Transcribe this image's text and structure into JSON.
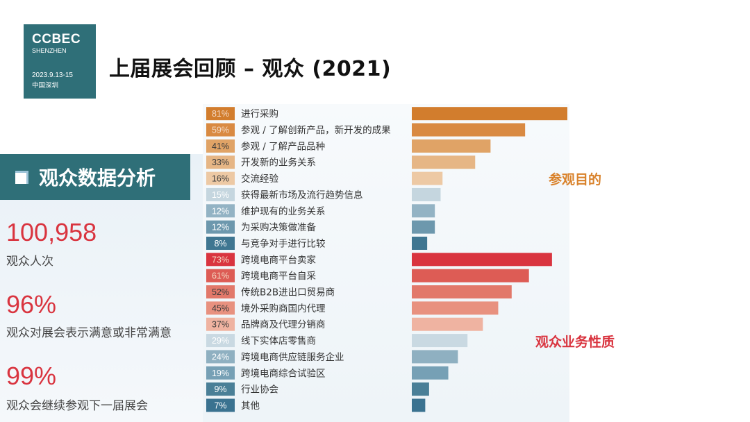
{
  "logo": {
    "brand": "CCBEC",
    "city": "SHENZHEN",
    "date": "2023.9.13-15",
    "place": "中国深圳"
  },
  "title": "上届展会回顾 – 观众 (2021)",
  "panel": {
    "heading": "观众数据分析",
    "stats": [
      {
        "value": "100,958",
        "label": "观众人次"
      },
      {
        "value": "96%",
        "label": "观众对展会表示满意或非常满意"
      },
      {
        "value": "99%",
        "label": "观众会继续参观下一届展会"
      }
    ]
  },
  "colors": {
    "brand_teal": "#2f6f78",
    "accent_red": "#d9343f",
    "accent_orange": "#d9822b"
  },
  "chart_data": [
    {
      "type": "bar",
      "orientation": "horizontal",
      "annotation": "参观目的",
      "annotation_color": "#d9822b",
      "xlim": [
        0,
        81
      ],
      "categories": [
        "进行采购",
        "参观 / 了解创新产品，新开发的成果",
        "参观 / 了解产品品种",
        "开发新的业务关系",
        "交流经验",
        "获得最新市场及流行趋势信息",
        "维护现有的业务关系",
        "为采购决策做准备",
        "与竞争对手进行比较"
      ],
      "values": [
        81,
        59,
        41,
        33,
        16,
        15,
        12,
        12,
        8
      ],
      "value_labels": [
        "81%",
        "59%",
        "41%",
        "33%",
        "16%",
        "15%",
        "12%",
        "12%",
        "8%"
      ],
      "colors": [
        "#d27d2d",
        "#d98a42",
        "#e0a366",
        "#e6b685",
        "#edc9a4",
        "#c5d6df",
        "#93b3c4",
        "#6d98ad",
        "#3f7691"
      ]
    },
    {
      "type": "bar",
      "orientation": "horizontal",
      "annotation": "观众业务性质",
      "annotation_color": "#d9343f",
      "xlim": [
        0,
        81
      ],
      "categories": [
        "跨境电商平台卖家",
        "跨境电商平台自采",
        "传统B2B进出口贸易商",
        "境外采购商国内代理",
        "品牌商及代理分销商",
        "线下实体店零售商",
        "跨境电商供应链服务企业",
        "跨境电商综合试验区",
        "行业协会",
        "其他"
      ],
      "values": [
        73,
        61,
        52,
        45,
        37,
        29,
        24,
        19,
        9,
        7
      ],
      "value_labels": [
        "73%",
        "61%",
        "52%",
        "45%",
        "37%",
        "29%",
        "24%",
        "19%",
        "9%",
        "7%"
      ],
      "colors": [
        "#d9343f",
        "#dd5c55",
        "#e2786a",
        "#e8917f",
        "#efb3a1",
        "#c9d9e2",
        "#8fb0c1",
        "#76a0b5",
        "#4a7f97",
        "#3a7290"
      ]
    }
  ]
}
